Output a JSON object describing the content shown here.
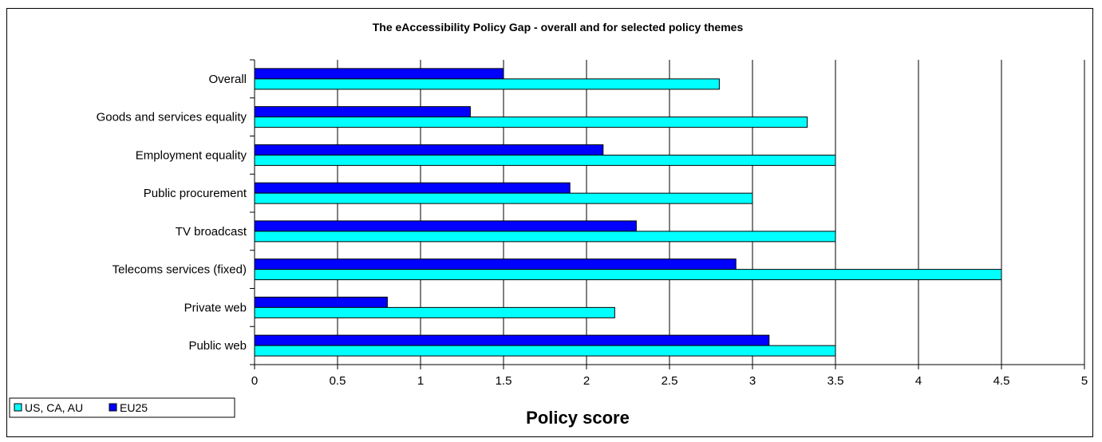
{
  "chart_data": {
    "type": "bar",
    "orientation": "horizontal",
    "title": "The eAccessibility Policy Gap - overall and for selected policy themes",
    "xlabel": "Policy score",
    "xlim": [
      0,
      5
    ],
    "xticks": [
      "0",
      "0.5",
      "1",
      "1.5",
      "2",
      "2.5",
      "3",
      "3.5",
      "4",
      "4.5",
      "5"
    ],
    "grid": "vertical",
    "legend_position": "bottom-left",
    "categories": [
      "Overall",
      "Goods and services equality",
      "Employment equality",
      "Public procurement",
      "TV broadcast",
      "Telecoms services (fixed)",
      "Private web",
      "Public web"
    ],
    "series": [
      {
        "name": "US, CA, AU",
        "color": "#00ffff",
        "values": [
          2.8,
          3.33,
          3.5,
          3.0,
          3.5,
          4.5,
          2.17,
          3.5
        ]
      },
      {
        "name": "EU25",
        "color": "#0000ff",
        "values": [
          1.5,
          1.3,
          2.1,
          1.9,
          2.3,
          2.9,
          0.8,
          3.1
        ]
      }
    ]
  }
}
